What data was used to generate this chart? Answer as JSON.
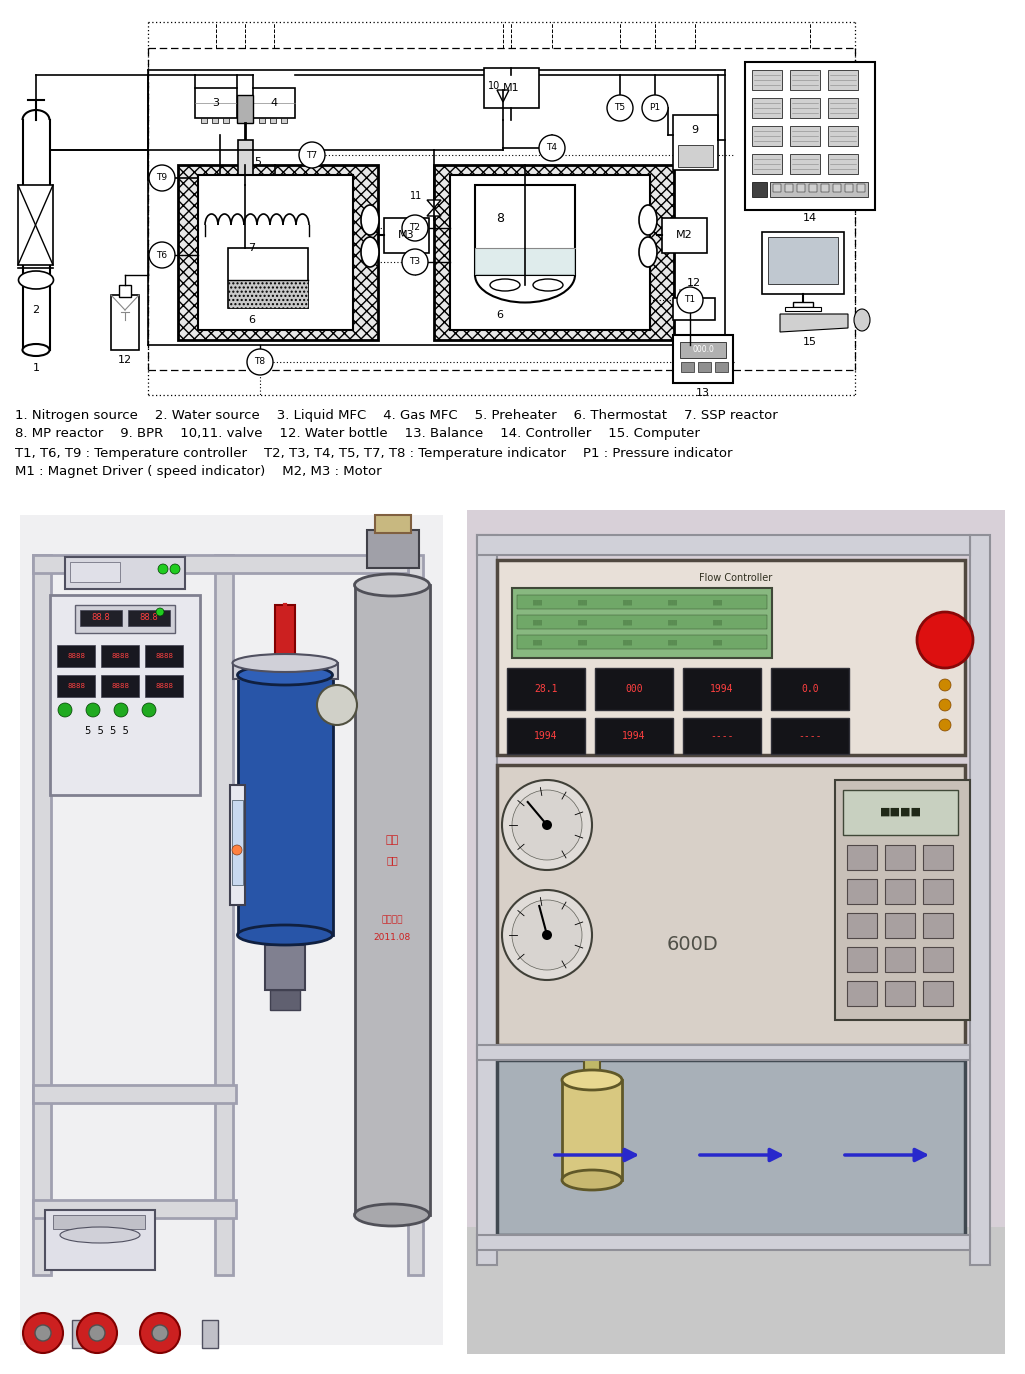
{
  "background_color": "#ffffff",
  "legend_lines": [
    "1. Nitrogen source    2. Water source    3. Liquid MFC    4. Gas MFC    5. Preheater    6. Thermostat    7. SSP reactor",
    "8. MP reactor    9. BPR    10,11. valve    12. Water bottle    13. Balance    14. Controller    15. Computer",
    "T1, T6, T9 : Temperature controller    T2, T3, T4, T5, T7, T8 : Temperature indicator    P1 : Pressure indicator",
    "M1 : Magnet Driver ( speed indicator)    M2, M3 : Motor"
  ],
  "legend_fontsize": 9.5,
  "fig_width": 10.25,
  "fig_height": 13.74
}
